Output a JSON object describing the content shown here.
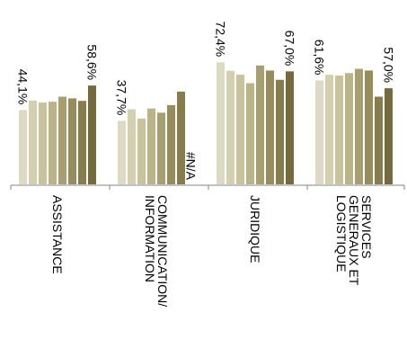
{
  "chart_data": {
    "type": "bar",
    "title": "",
    "xlabel": "",
    "ylabel": "",
    "ylim": [
      0,
      100
    ],
    "grid": false,
    "legend": "none",
    "categories": [
      [
        "ASSISTANCE"
      ],
      [
        "COMMUNICATION/",
        "INFORMATION"
      ],
      [
        "JURIDIQUE"
      ],
      [
        "SERVICES",
        "GENERAUX ET",
        "LOGISTIQUE"
      ]
    ],
    "series_colors": [
      "#ddd9c3",
      "#d4cfae",
      "#c9c39c",
      "#bbb489",
      "#a89f70",
      "#978d5c",
      "#867c4c",
      "#756a3c"
    ],
    "groups": [
      {
        "values": [
          44.1,
          49.7,
          48.5,
          49.0,
          52.0,
          51.0,
          49.5,
          58.6
        ],
        "labels": [
          {
            "series": 0,
            "text": "44,1%"
          },
          {
            "series": 7,
            "text": "58,6%"
          }
        ]
      },
      {
        "values": [
          37.7,
          44.5,
          39.0,
          45.0,
          42.5,
          47.0,
          55.0,
          null
        ],
        "labels": [
          {
            "series": 0,
            "text": "37,7%"
          },
          {
            "series": 7,
            "text": "#N/A"
          }
        ]
      },
      {
        "values": [
          72.4,
          67.3,
          65.0,
          60.0,
          70.5,
          67.5,
          62.0,
          67.0
        ],
        "labels": [
          {
            "series": 0,
            "text": "72,4%"
          },
          {
            "series": 7,
            "text": "67,0%"
          }
        ]
      },
      {
        "values": [
          61.6,
          65.0,
          64.5,
          66.0,
          68.5,
          67.5,
          52.0,
          57.0
        ],
        "labels": [
          {
            "series": 0,
            "text": "61,6%"
          },
          {
            "series": 7,
            "text": "57,0%"
          }
        ]
      }
    ]
  }
}
